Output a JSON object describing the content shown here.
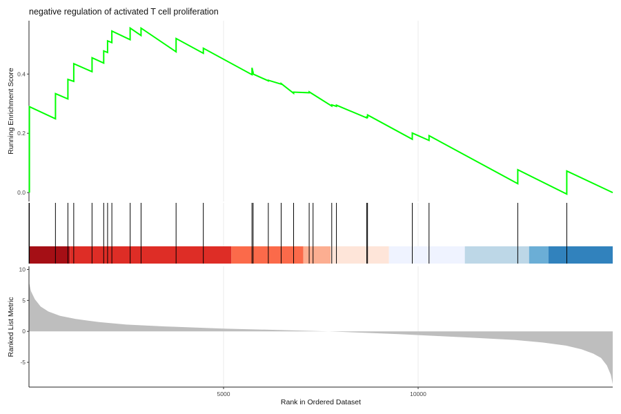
{
  "chart_data": {
    "type": "line",
    "title": "negative regulation of activated T cell proliferation",
    "xlabel": "Rank in Ordered Dataset",
    "xlim": [
      0,
      15000
    ],
    "x_ticks": [
      5000,
      10000
    ],
    "x_tick_labels": [
      "5000",
      "10000"
    ],
    "grid": true,
    "panels": {
      "running_score": {
        "ylabel": "Running Enrichment Score",
        "ylim": [
          -0.03,
          0.58
        ],
        "y_ticks": [
          0.0,
          0.2,
          0.4
        ],
        "y_tick_labels": [
          "0.0",
          "0.2",
          "0.4"
        ],
        "line_color": "#00FF00",
        "hit_ranks": [
          10,
          680,
          1000,
          1150,
          1620,
          1920,
          2020,
          2130,
          2600,
          2880,
          3780,
          4480,
          5730,
          5760,
          6150,
          6480,
          6800,
          7200,
          7300,
          7780,
          7900,
          8680,
          8700,
          9850,
          10280,
          12560,
          13820
        ],
        "score_values": [
          0.0,
          0.29,
          0.249,
          0.334,
          0.316,
          0.382,
          0.375,
          0.435,
          0.408,
          0.455,
          0.437,
          0.478,
          0.473,
          0.512,
          0.506,
          0.545,
          0.516,
          0.555,
          0.53,
          0.555,
          0.475,
          0.52,
          0.47,
          0.487,
          0.398,
          0.421,
          0.405,
          0.4,
          0.377,
          0.379,
          0.366,
          0.368,
          0.335,
          0.339,
          0.337,
          0.34,
          0.292,
          0.296,
          0.291,
          0.295,
          0.252,
          0.255,
          0.254,
          0.262,
          0.18,
          0.201,
          0.176,
          0.192,
          0.03,
          0.077,
          -0.005,
          0.073,
          0.0
        ],
        "score_x": [
          10,
          10,
          680,
          680,
          1000,
          1000,
          1150,
          1150,
          1620,
          1620,
          1920,
          1920,
          2020,
          2020,
          2130,
          2130,
          2600,
          2600,
          2880,
          2880,
          3780,
          3780,
          4480,
          4480,
          5730,
          5730,
          5760,
          5760,
          6150,
          6150,
          6480,
          6480,
          6800,
          6800,
          7200,
          7200,
          7780,
          7780,
          7900,
          7900,
          8680,
          8680,
          8700,
          8700,
          9850,
          9850,
          10280,
          10280,
          12560,
          12560,
          13820,
          13820,
          15000
        ]
      },
      "ranked_metric": {
        "ylabel": "Ranked List Metric",
        "ylim": [
          -9,
          10.5
        ],
        "y_ticks": [
          -5,
          0,
          5,
          10
        ],
        "y_tick_labels": [
          "-5",
          "0",
          "5",
          "10"
        ],
        "fill_color": "#BEBEBE",
        "curve_x": [
          0,
          50,
          150,
          300,
          500,
          800,
          1200,
          1800,
          2500,
          3500,
          5000,
          6500,
          7700,
          8500,
          9500,
          10500,
          11500,
          12500,
          13200,
          13800,
          14200,
          14500,
          14700,
          14850,
          14950,
          15000
        ],
        "curve_y": [
          8.0,
          6.5,
          5.2,
          4.0,
          3.2,
          2.5,
          2.0,
          1.5,
          1.1,
          0.8,
          0.45,
          0.2,
          0.0,
          -0.2,
          -0.45,
          -0.75,
          -1.05,
          -1.4,
          -1.8,
          -2.3,
          -2.9,
          -3.6,
          -4.3,
          -5.5,
          -7.0,
          -8.5
        ]
      },
      "color_bar": [
        {
          "from": 0,
          "to": 1050,
          "color": "#A50F15"
        },
        {
          "from": 1050,
          "to": 5200,
          "color": "#DE2D26"
        },
        {
          "from": 5200,
          "to": 7050,
          "color": "#FB6A4A"
        },
        {
          "from": 7050,
          "to": 7750,
          "color": "#FCAE91"
        },
        {
          "from": 7750,
          "to": 9250,
          "color": "#FEE5D9"
        },
        {
          "from": 9250,
          "to": 11200,
          "color": "#EFF3FF"
        },
        {
          "from": 11200,
          "to": 12850,
          "color": "#BDD7E7"
        },
        {
          "from": 12850,
          "to": 13350,
          "color": "#6BAED6"
        },
        {
          "from": 13350,
          "to": 15000,
          "color": "#3182BD"
        }
      ]
    }
  }
}
